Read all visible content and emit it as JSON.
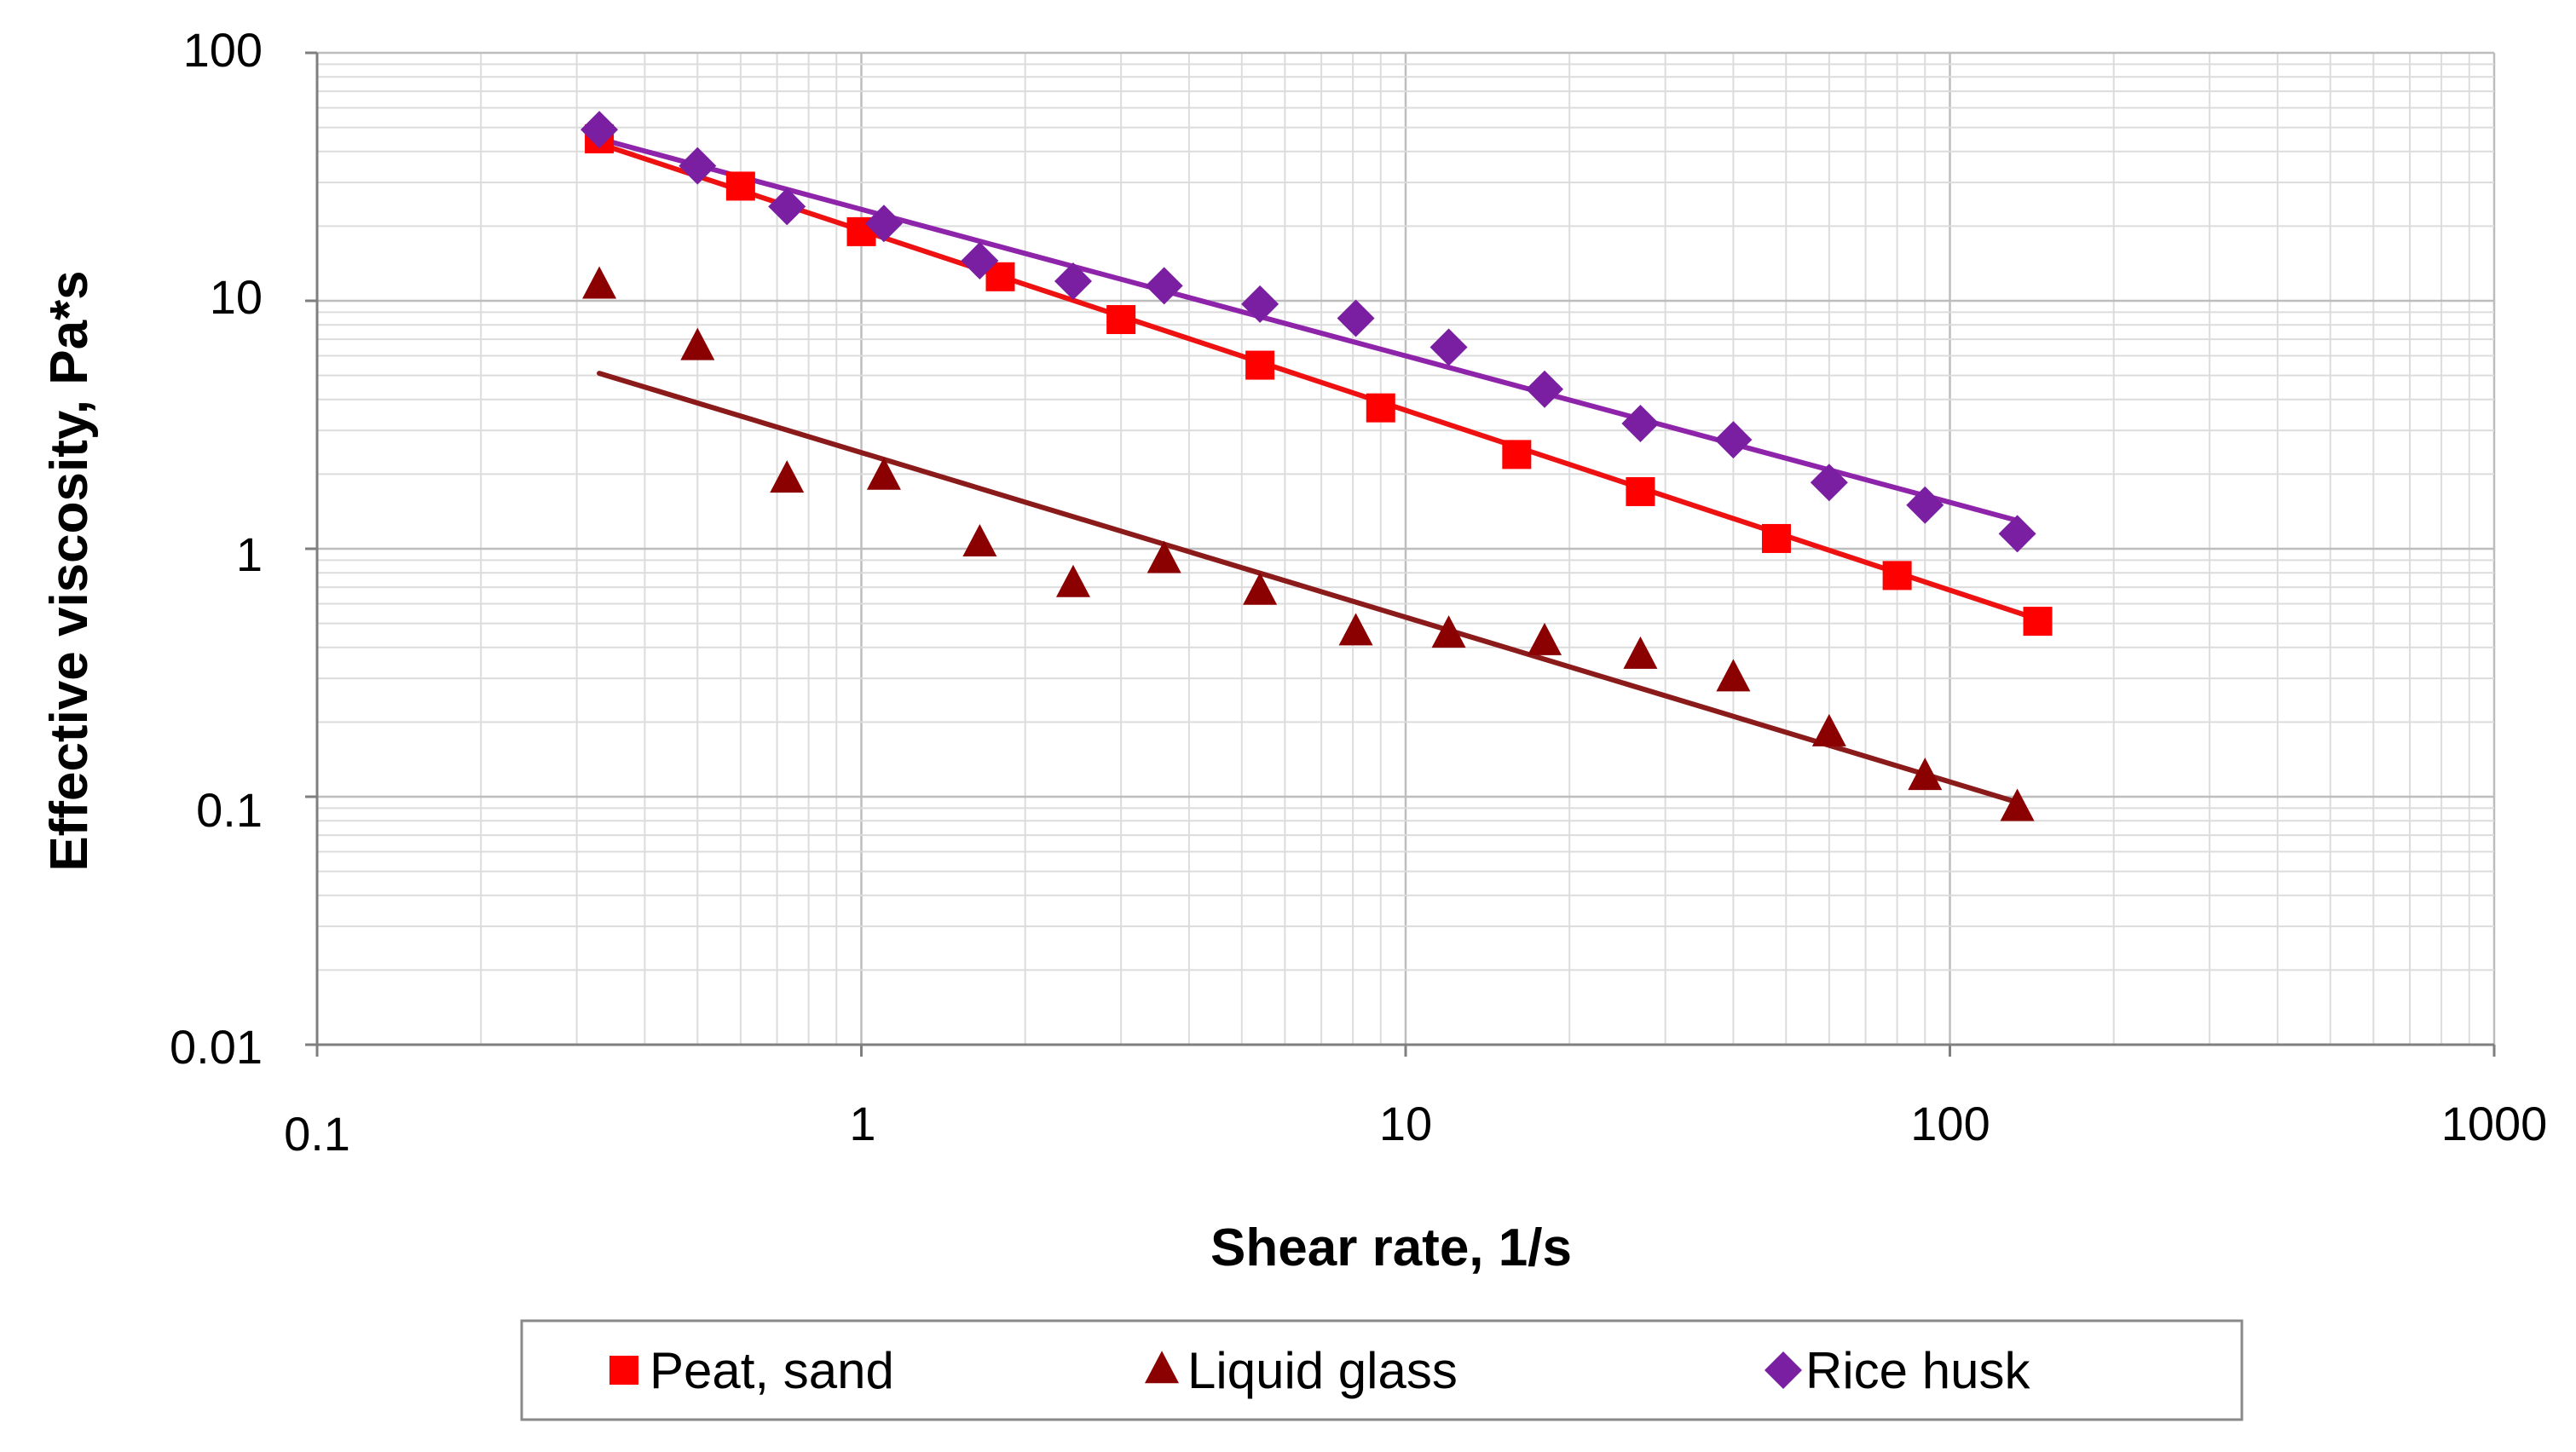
{
  "chart_data": {
    "type": "scatter",
    "xscale": "log",
    "yscale": "log",
    "xlim": [
      0.1,
      1000
    ],
    "ylim": [
      0.01,
      100
    ],
    "xlabel": "Shear rate, 1/s",
    "ylabel": "Effective viscosity, Pa*s",
    "x_ticks": [
      "0.1",
      "1",
      "10",
      "100",
      "1000"
    ],
    "y_ticks": [
      "0.01",
      "0.1",
      "1",
      "10",
      "100"
    ],
    "grid": true,
    "legend_position": "bottom",
    "series": [
      {
        "name": "Peat, sand",
        "marker": "square",
        "color": "#ff0000",
        "line_color": "#ee1111",
        "x": [
          0.33,
          0.6,
          1.0,
          1.8,
          3.0,
          5.4,
          9.0,
          16,
          27,
          48,
          80,
          145
        ],
        "y": [
          45,
          29,
          19,
          12.5,
          8.4,
          5.5,
          3.7,
          2.4,
          1.7,
          1.1,
          0.78,
          0.51
        ],
        "fit": {
          "x": [
            0.33,
            145
          ],
          "y": [
            43,
            0.52
          ]
        }
      },
      {
        "name": "Liquid glass",
        "marker": "triangle",
        "color": "#8b0000",
        "line_color": "#8b1a1a",
        "x": [
          0.33,
          0.5,
          0.73,
          1.1,
          1.65,
          2.45,
          3.6,
          5.4,
          8.1,
          12,
          18,
          27,
          40,
          60,
          90,
          133
        ],
        "y": [
          11.5,
          6.5,
          1.9,
          1.95,
          1.05,
          0.72,
          0.9,
          0.67,
          0.46,
          0.45,
          0.42,
          0.37,
          0.3,
          0.18,
          0.12,
          0.09
        ],
        "fit": {
          "x": [
            0.33,
            133
          ],
          "y": [
            5.1,
            0.095
          ]
        }
      },
      {
        "name": "Rice husk",
        "marker": "diamond",
        "color": "#7b1fa2",
        "line_color": "#8e24aa",
        "x": [
          0.33,
          0.5,
          0.73,
          1.1,
          1.65,
          2.45,
          3.6,
          5.4,
          8.1,
          12,
          18,
          27,
          40,
          60,
          90,
          133
        ],
        "y": [
          49,
          35,
          24,
          20.5,
          14.5,
          12,
          11.5,
          9.7,
          8.5,
          6.5,
          4.4,
          3.2,
          2.75,
          1.85,
          1.5,
          1.15
        ],
        "fit": {
          "x": [
            0.33,
            133
          ],
          "y": [
            45,
            1.3
          ]
        }
      }
    ]
  }
}
